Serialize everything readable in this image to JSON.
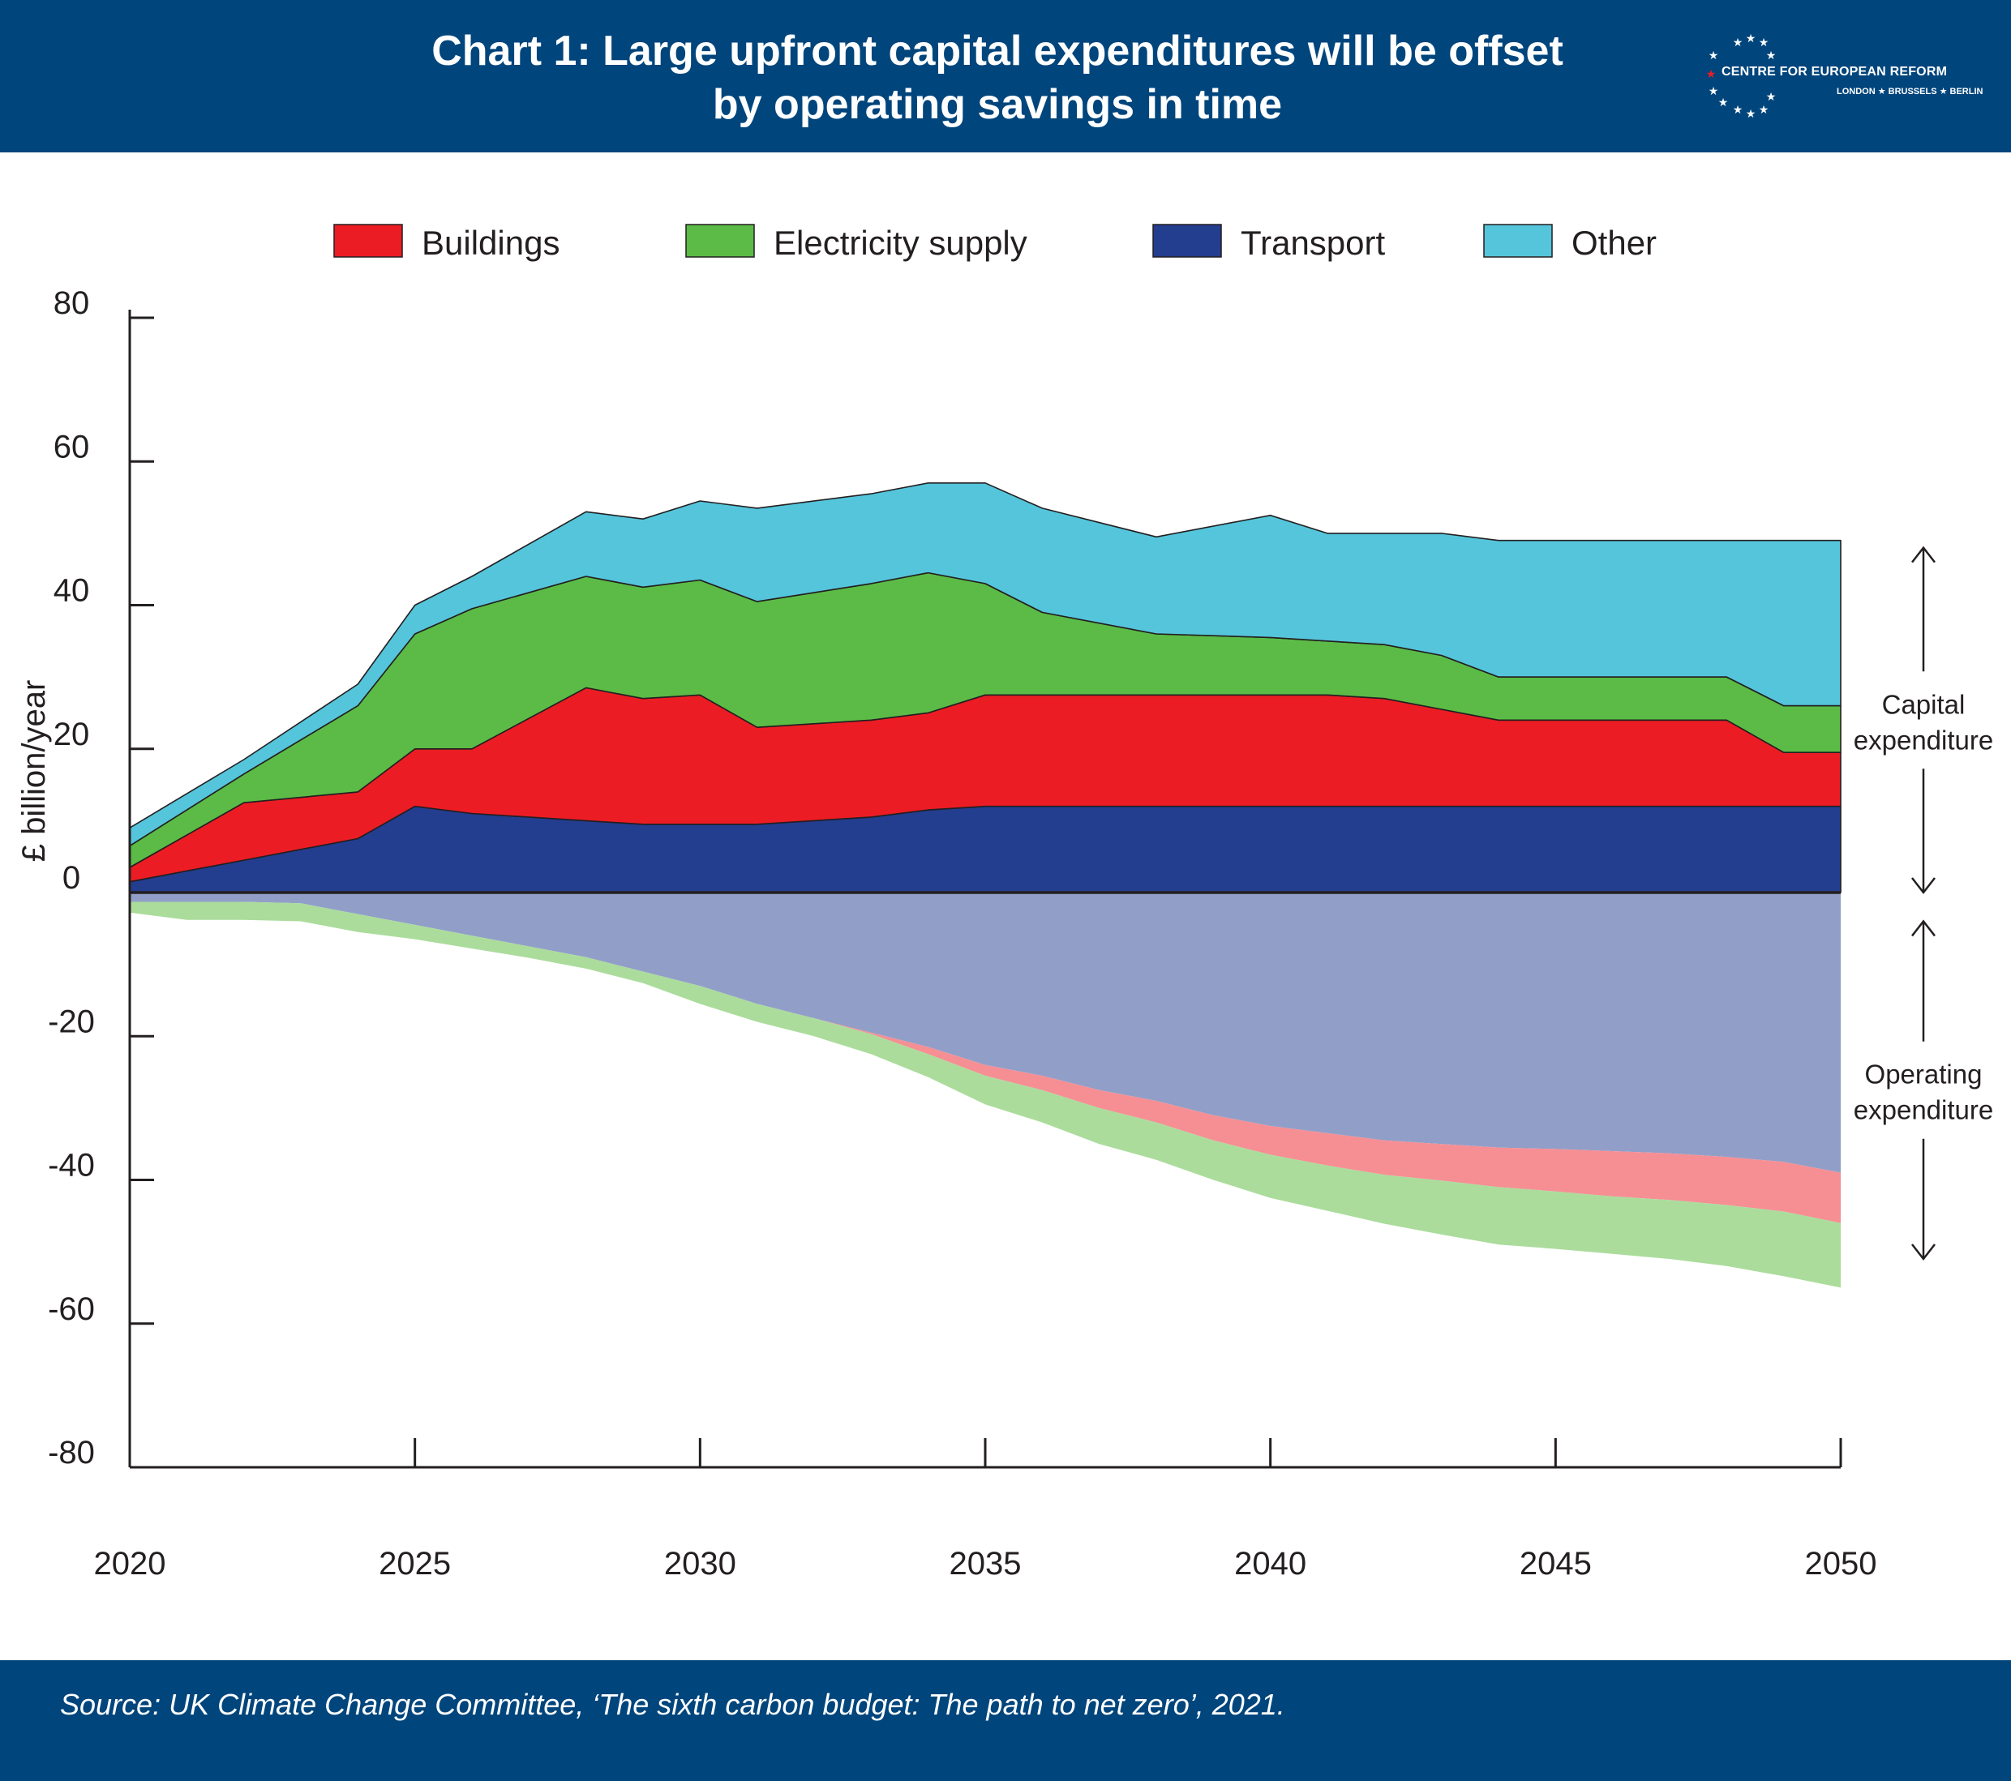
{
  "header": {
    "title_line1": "Chart 1: Large upfront capital expenditures will be offset",
    "title_line2": "by operating savings in time",
    "logo_name": "CENTRE FOR EUROPEAN REFORM",
    "logo_cities": "LONDON ★ BRUSSELS ★ BERLIN"
  },
  "footer": {
    "source": "Source: UK Climate Change Committee, ‘The sixth carbon budget: The path to net zero’, 2021."
  },
  "colors": {
    "header_bg": "#00457c",
    "buildings": "#ec1c24",
    "electricity": "#5bbb46",
    "transport": "#233d8f",
    "other": "#55c5db",
    "transport_opex": "#919fc8",
    "buildings_opex": "#f58f94",
    "electricity_opex": "#abdc9c"
  },
  "chart_data": {
    "type": "area",
    "stacked": true,
    "ylabel": "£ billion/year",
    "xlabel": "",
    "xlim": [
      2020,
      2050
    ],
    "ylim": [
      -80,
      80
    ],
    "x_ticks": [
      2020,
      2025,
      2030,
      2035,
      2040,
      2045,
      2050
    ],
    "y_ticks": [
      80,
      60,
      40,
      20,
      0,
      -20,
      -40,
      -60,
      -80
    ],
    "legend": [
      "Buildings",
      "Electricity supply",
      "Transport",
      "Other"
    ],
    "legend_position": "top",
    "annotations": [
      {
        "lines": [
          "Capital",
          "expenditure"
        ],
        "range": [
          48,
          0
        ]
      },
      {
        "lines": [
          "Operating",
          "expenditure"
        ],
        "range": [
          -4,
          -51
        ]
      }
    ],
    "capital_expenditure": {
      "x": [
        2020,
        2022,
        2024,
        2025,
        2026,
        2028,
        2029,
        2030,
        2031,
        2033,
        2034,
        2035,
        2036,
        2038,
        2040,
        2041,
        2042,
        2043,
        2044,
        2045,
        2046,
        2048,
        2049,
        2050
      ],
      "series": [
        {
          "name": "Transport",
          "values": [
            1.5,
            4.5,
            7.5,
            12,
            11,
            10,
            9.5,
            9.5,
            9.5,
            10.5,
            11.5,
            12,
            12,
            12,
            12,
            12,
            12,
            12,
            12,
            12,
            12,
            12,
            12,
            12
          ]
        },
        {
          "name": "Buildings",
          "values": [
            2,
            8,
            6.5,
            8,
            9,
            18.5,
            17.5,
            18,
            13.5,
            13.5,
            13.5,
            15.5,
            15.5,
            15.5,
            15.5,
            15.5,
            15,
            13.5,
            12,
            12,
            12,
            12,
            7.5,
            7.5
          ]
        },
        {
          "name": "Electricity supply",
          "values": [
            3,
            4,
            12,
            16,
            19.5,
            15.5,
            15.5,
            16,
            17.5,
            19,
            19.5,
            15.5,
            11.5,
            8.5,
            8,
            7.5,
            7.5,
            7.5,
            6,
            6,
            6,
            6,
            6.5,
            6.5
          ]
        },
        {
          "name": "Other",
          "values": [
            2.5,
            2,
            3,
            4,
            4.5,
            9,
            9.5,
            11,
            13,
            12.5,
            12.5,
            14,
            14.5,
            13.5,
            17,
            15,
            15.5,
            17,
            19,
            19,
            19,
            19,
            23,
            23
          ]
        }
      ]
    },
    "operating_expenditure": {
      "x": [
        2020,
        2021,
        2022,
        2023,
        2024,
        2025,
        2026,
        2027,
        2028,
        2029,
        2030,
        2031,
        2032,
        2033,
        2034,
        2035,
        2036,
        2037,
        2038,
        2039,
        2040,
        2041,
        2042,
        2043,
        2044,
        2045,
        2046,
        2047,
        2048,
        2049,
        2050
      ],
      "series": [
        {
          "name": "Transport",
          "values": [
            -1.3,
            -1.3,
            -1.3,
            -1.5,
            -3,
            -4.5,
            -6,
            -7.5,
            -9,
            -11,
            -13,
            -15.5,
            -17.5,
            -19.5,
            -21.5,
            -24,
            -25.5,
            -27.5,
            -29,
            -31,
            -32.5,
            -33.5,
            -34.5,
            -35,
            -35.5,
            -35.7,
            -36,
            -36.3,
            -36.8,
            -37.5,
            -39
          ]
        },
        {
          "name": "Buildings",
          "values": [
            0,
            0,
            0,
            0,
            0,
            0,
            0,
            0,
            0,
            0,
            0,
            0,
            0,
            -0.2,
            -1,
            -1.5,
            -2,
            -2.5,
            -3,
            -3.5,
            -4,
            -4.5,
            -4.8,
            -5.1,
            -5.5,
            -5.9,
            -6.3,
            -6.5,
            -6.7,
            -6.9,
            -7
          ]
        },
        {
          "name": "Electricity supply",
          "values": [
            -1.5,
            -2.5,
            -2.5,
            -2.5,
            -2.5,
            -2,
            -1.8,
            -1.6,
            -1.6,
            -1.6,
            -2.5,
            -2.5,
            -2.5,
            -2.8,
            -3.2,
            -4,
            -4.5,
            -5,
            -5.2,
            -5.5,
            -6,
            -6.3,
            -6.8,
            -7.5,
            -8,
            -8,
            -8,
            -8.2,
            -8.5,
            -9,
            -9
          ]
        }
      ]
    }
  }
}
